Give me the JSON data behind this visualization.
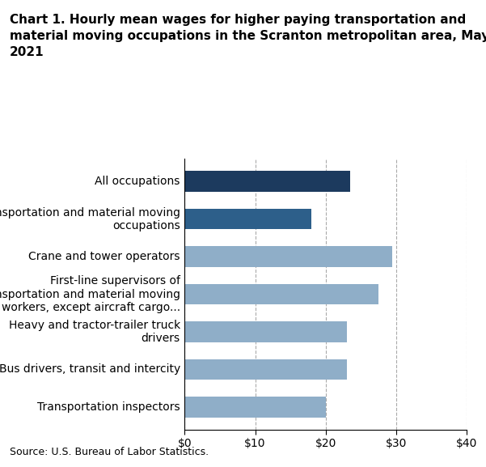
{
  "title": "Chart 1. Hourly mean wages for higher paying transportation and\nmaterial moving occupations in the Scranton metropolitan area, May\n2021",
  "categories": [
    "Transportation inspectors",
    "Bus drivers, transit and intercity",
    "Heavy and tractor-trailer truck\ndrivers",
    "First-line supervisors of\ntransportation and material moving\nworkers, except aircraft cargo...",
    "Crane and tower operators",
    "Transportation and material moving\noccupations",
    "All occupations"
  ],
  "values": [
    20.0,
    23.0,
    23.0,
    27.5,
    29.5,
    18.0,
    23.5
  ],
  "colors": [
    "#8faec8",
    "#8faec8",
    "#8faec8",
    "#8faec8",
    "#8faec8",
    "#2d5f8a",
    "#1c3a5e"
  ],
  "xlim": [
    0,
    40
  ],
  "xticks": [
    0,
    10,
    20,
    30,
    40
  ],
  "xticklabels": [
    "$0",
    "$10",
    "$20",
    "$30",
    "$40"
  ],
  "source": "Source: U.S. Bureau of Labor Statistics.",
  "bar_height": 0.55,
  "title_fontsize": 11,
  "tick_fontsize": 10,
  "label_fontsize": 10,
  "source_fontsize": 9,
  "background_color": "#ffffff",
  "grid_color": "#aaaaaa"
}
